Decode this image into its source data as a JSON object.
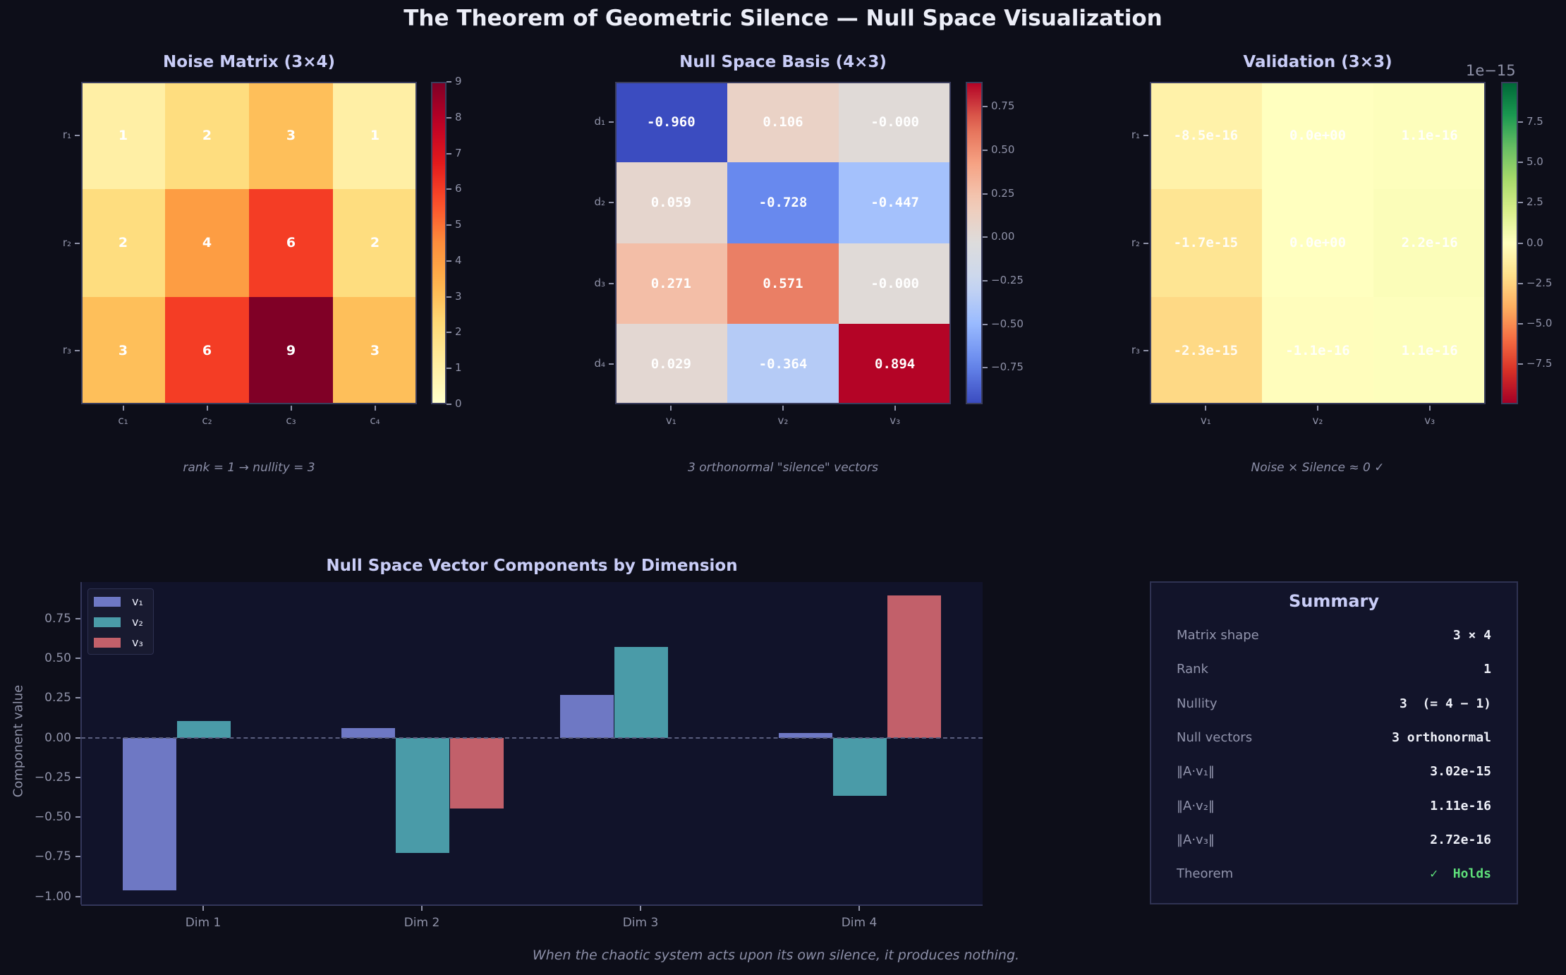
{
  "title": "The Theorem of Geometric Silence — Null Space Visualization",
  "footer": "When the chaotic system acts upon its own silence, it produces nothing.",
  "colors": {
    "v1": "#6e78c4",
    "v2": "#4a9ba8",
    "v3": "#c2606a",
    "holds": "#5ee07a",
    "background": "#0d0e19",
    "title": "#c9cdf7"
  },
  "chart_data": [
    {
      "type": "heatmap",
      "title": "Noise Matrix  (3×4)",
      "caption": "rank = 1  →  nullity = 3",
      "colormap": "YlOrRd",
      "rows": [
        "r₁",
        "r₂",
        "r₃"
      ],
      "cols": [
        "c₁",
        "c₂",
        "c₃",
        "c₄"
      ],
      "values": [
        [
          1,
          2,
          3,
          1
        ],
        [
          2,
          4,
          6,
          2
        ],
        [
          3,
          6,
          9,
          3
        ]
      ],
      "cell_labels": [
        [
          "1",
          "2",
          "3",
          "1"
        ],
        [
          "2",
          "4",
          "6",
          "2"
        ],
        [
          "3",
          "6",
          "9",
          "3"
        ]
      ],
      "vmin": 0,
      "vmax": 9,
      "colorbar_ticks": [
        "0",
        "1",
        "2",
        "3",
        "4",
        "5",
        "6",
        "7",
        "8",
        "9"
      ],
      "colorbar_tick_values": [
        0,
        1,
        2,
        3,
        4,
        5,
        6,
        7,
        8,
        9
      ]
    },
    {
      "type": "heatmap",
      "title": "Null Space Basis  (4×3)",
      "caption": "3 orthonormal \"silence\" vectors",
      "colormap": "coolwarm",
      "rows": [
        "d₁",
        "d₂",
        "d₃",
        "d₄"
      ],
      "cols": [
        "v₁",
        "v₂",
        "v₃"
      ],
      "values": [
        [
          -0.96,
          0.106,
          -0.0
        ],
        [
          0.059,
          -0.728,
          -0.447
        ],
        [
          0.271,
          0.571,
          -0.0
        ],
        [
          0.029,
          -0.364,
          0.894
        ]
      ],
      "cell_labels": [
        [
          "-0.960",
          "0.106",
          "-0.000"
        ],
        [
          "0.059",
          "-0.728",
          "-0.447"
        ],
        [
          "0.271",
          "0.571",
          "-0.000"
        ],
        [
          "0.029",
          "-0.364",
          "0.894"
        ]
      ],
      "vmin": -0.96,
      "vmax": 0.894,
      "colorbar_ticks": [
        "−0.75",
        "−0.50",
        "−0.25",
        "0.00",
        "0.25",
        "0.50",
        "0.75"
      ],
      "colorbar_tick_values": [
        -0.75,
        -0.5,
        -0.25,
        0,
        0.25,
        0.5,
        0.75
      ]
    },
    {
      "type": "heatmap",
      "title": "Validation  (3×3)",
      "caption": "Noise × Silence  ≈  0  ✓",
      "colormap": "RdYlGn",
      "offset_label": "1e−15",
      "rows": [
        "r₁",
        "r₂",
        "r₃"
      ],
      "cols": [
        "v₁",
        "v₂",
        "v₃"
      ],
      "values": [
        [
          -8.5e-16,
          0,
          1.1e-16
        ],
        [
          -1.7e-15,
          0,
          2.2e-16
        ],
        [
          -2.3e-15,
          -1.1e-16,
          1.1e-16
        ]
      ],
      "cell_labels": [
        [
          "-8.5e-16",
          "0.0e+00",
          "1.1e-16"
        ],
        [
          "-1.7e-15",
          "0.0e+00",
          "2.2e-16"
        ],
        [
          "-2.3e-15",
          "-1.1e-16",
          "1.1e-16"
        ]
      ],
      "vmin": -1e-14,
      "vmax": 1e-14,
      "colorbar_ticks": [
        "−7.5",
        "−5.0",
        "−2.5",
        "0.0",
        "2.5",
        "5.0",
        "7.5"
      ],
      "colorbar_tick_values": [
        -7.5e-15,
        -5e-15,
        -2.5e-15,
        0,
        2.5e-15,
        5e-15,
        7.5e-15
      ]
    },
    {
      "type": "bar",
      "title": "Null Space Vector Components by Dimension",
      "xlabel": "",
      "ylabel": "Component value",
      "categories": [
        "Dim 1",
        "Dim 2",
        "Dim 3",
        "Dim 4"
      ],
      "series": [
        {
          "name": "v₁",
          "values": [
            -0.96,
            0.059,
            0.271,
            0.029
          ]
        },
        {
          "name": "v₂",
          "values": [
            0.106,
            -0.728,
            0.571,
            -0.364
          ]
        },
        {
          "name": "v₃",
          "values": [
            -0.0,
            -0.447,
            -0.0,
            0.894
          ]
        }
      ],
      "ylim": [
        -1.05,
        0.98
      ],
      "yticks": [
        -1.0,
        -0.75,
        -0.5,
        -0.25,
        0.0,
        0.25,
        0.5,
        0.75
      ],
      "ytick_labels": [
        "−1.00",
        "−0.75",
        "−0.50",
        "−0.25",
        "0.00",
        "0.25",
        "0.50",
        "0.75"
      ],
      "zero_line": "dashed",
      "legend": "top-left",
      "grid": false
    }
  ],
  "summary": {
    "title": "Summary",
    "rows": [
      {
        "label": "Matrix shape",
        "value": "3 × 4"
      },
      {
        "label": "Rank",
        "value": "1"
      },
      {
        "label": "Nullity",
        "value": "3  (= 4 − 1)"
      },
      {
        "label": "Null vectors",
        "value": "3 orthonormal"
      },
      {
        "label": "‖A·v₁‖",
        "value": "3.02e-15"
      },
      {
        "label": "‖A·v₂‖",
        "value": "1.11e-16"
      },
      {
        "label": "‖A·v₃‖",
        "value": "2.72e-16"
      },
      {
        "label": "Theorem",
        "value": "✓  Holds",
        "status": "holds"
      }
    ]
  }
}
